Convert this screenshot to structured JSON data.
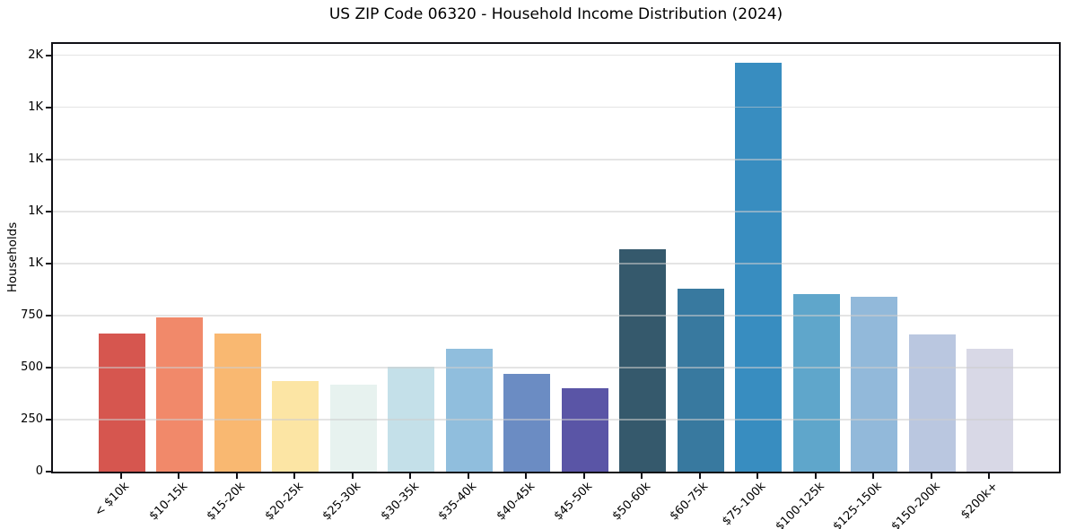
{
  "chart_data": {
    "type": "bar",
    "title": "US ZIP Code 06320 - Household Income Distribution (2024)",
    "xlabel": "",
    "ylabel": "Households",
    "categories": [
      "< $10k",
      "$10-15k",
      "$15-20k",
      "$20-25k",
      "$25-30k",
      "$30-35k",
      "$35-40k",
      "$40-45k",
      "$45-50k",
      "$50-60k",
      "$60-75k",
      "$75-100k",
      "$100-125k",
      "$125-150k",
      "$150-200k",
      "$200k+"
    ],
    "values": [
      665,
      740,
      665,
      435,
      420,
      505,
      590,
      470,
      400,
      1070,
      880,
      1965,
      855,
      840,
      660,
      590
    ],
    "bar_colors": [
      "#d6564f",
      "#f1896a",
      "#f9b871",
      "#fce5a4",
      "#e7f2ef",
      "#c4e0e9",
      "#90bedd",
      "#6b8cc3",
      "#5a55a6",
      "#35596c",
      "#38799f",
      "#388dc0",
      "#5fa6cb",
      "#92b9da",
      "#bac7e0",
      "#d8d8e6"
    ],
    "ylim": [
      0,
      2055
    ],
    "yticks": [
      {
        "value": 0,
        "label": "0"
      },
      {
        "value": 250,
        "label": "250"
      },
      {
        "value": 500,
        "label": "500"
      },
      {
        "value": 750,
        "label": "750"
      },
      {
        "value": 1000,
        "label": "1K"
      },
      {
        "value": 1250,
        "label": "1K"
      },
      {
        "value": 1500,
        "label": "1K"
      },
      {
        "value": 1750,
        "label": "1K"
      },
      {
        "value": 2000,
        "label": "2K"
      }
    ],
    "grid": {
      "axis": "y",
      "style": "light gray lines drawn over bars",
      "color": "#cdcdcd"
    },
    "legend_position": "none",
    "bar_width_fraction": 0.8,
    "x_label_rotation_deg": 45
  },
  "colors": {
    "background": "#ffffff",
    "spine": "#101016",
    "text": "#000000"
  }
}
